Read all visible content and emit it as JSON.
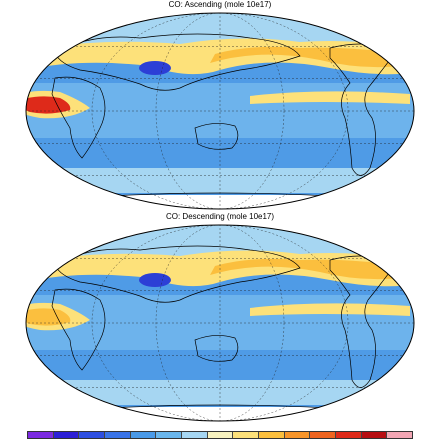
{
  "maps": {
    "top": {
      "title": "CO: Ascending  (mole 10e17)"
    },
    "bottom": {
      "title": "CO: Descending  (mole 10e17)"
    }
  },
  "colorbar": {
    "colors": [
      "#7b2ae0",
      "#2c1fd6",
      "#2e4fe0",
      "#3a74e8",
      "#4a9ae8",
      "#6ab6ec",
      "#a6d6f2",
      "#f8f3c0",
      "#fde17a",
      "#fbbf3e",
      "#f7952a",
      "#ee6420",
      "#de2a1a",
      "#b60e12",
      "#f2a6b4"
    ]
  },
  "palette": {
    "ocean_deep": "#4f9be6",
    "ocean_mid": "#6db3ec",
    "land_pale": "#a6d6f2",
    "yellow": "#fde17a",
    "orange": "#fbbf3e",
    "red": "#de2a1a",
    "darkblue": "#2c3fd6",
    "white": "#ffffff"
  }
}
